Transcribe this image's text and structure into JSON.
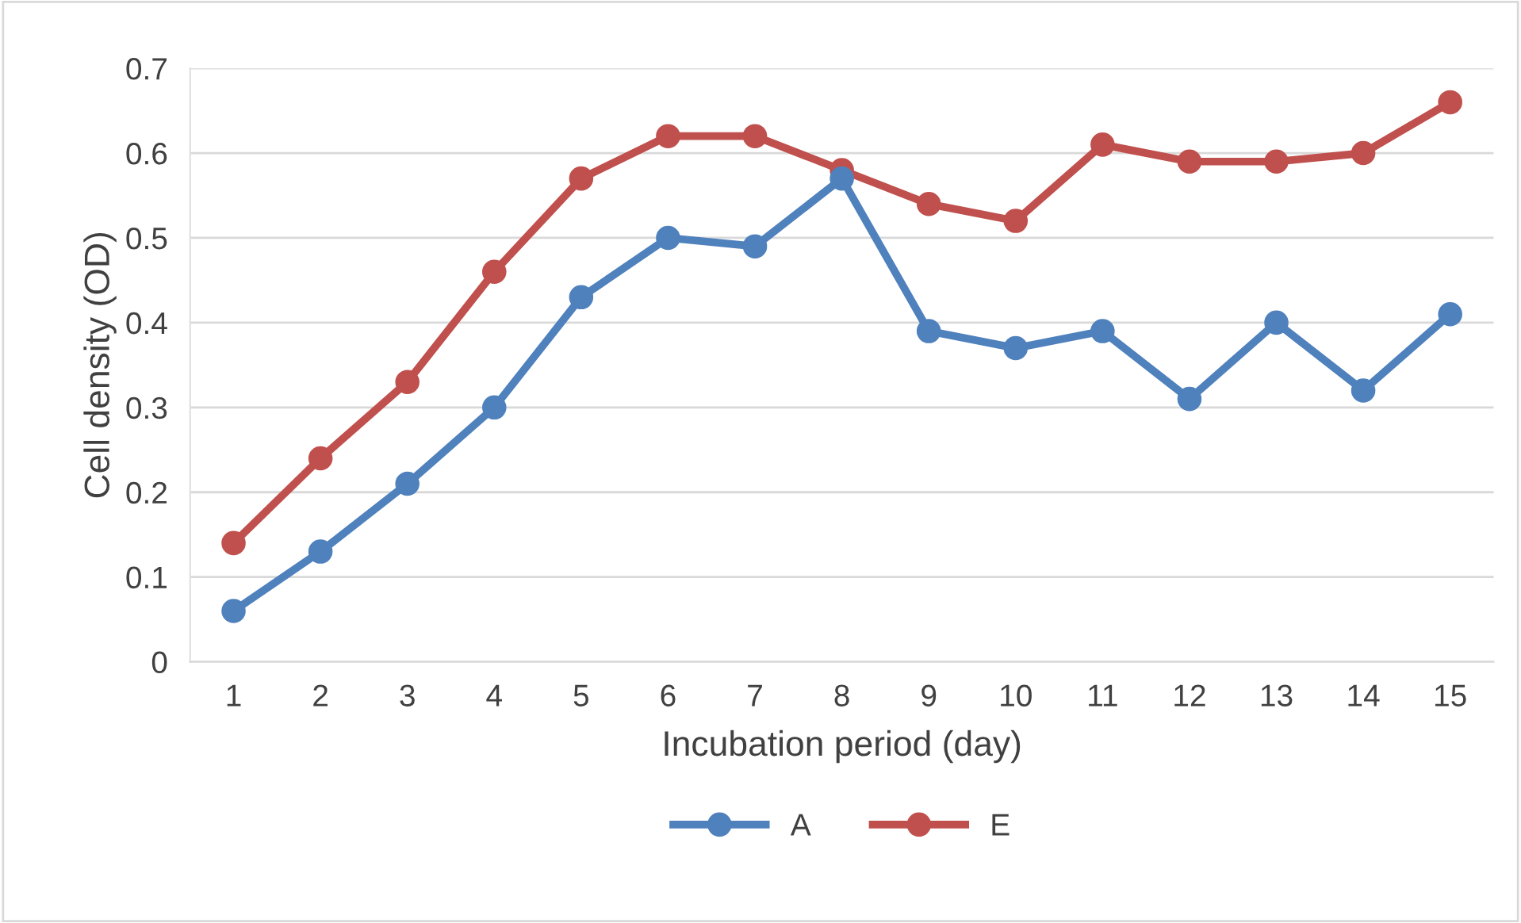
{
  "chart_data": {
    "type": "line",
    "xlabel": "Incubation period (day)",
    "ylabel": "Cell density (OD)",
    "categories": [
      "1",
      "2",
      "3",
      "4",
      "5",
      "6",
      "7",
      "8",
      "9",
      "10",
      "11",
      "12",
      "13",
      "14",
      "15"
    ],
    "series": [
      {
        "name": "A",
        "color": "#4f81bd",
        "values": [
          0.06,
          0.13,
          0.21,
          0.3,
          0.43,
          0.5,
          0.49,
          0.57,
          0.39,
          0.37,
          0.39,
          0.31,
          0.4,
          0.32,
          0.41
        ]
      },
      {
        "name": "E",
        "color": "#c0504d",
        "values": [
          0.14,
          0.24,
          0.33,
          0.46,
          0.57,
          0.62,
          0.62,
          0.58,
          0.54,
          0.52,
          0.61,
          0.59,
          0.59,
          0.6,
          0.66
        ]
      }
    ],
    "ylim": [
      0,
      0.7
    ],
    "yticks": [
      {
        "value": 0,
        "label": "0"
      },
      0.1,
      0.2,
      0.3,
      0.4,
      0.5,
      0.6,
      0.7
    ],
    "grid": "y",
    "legend": "bottom",
    "marker": "circle",
    "line_style": "solid"
  }
}
